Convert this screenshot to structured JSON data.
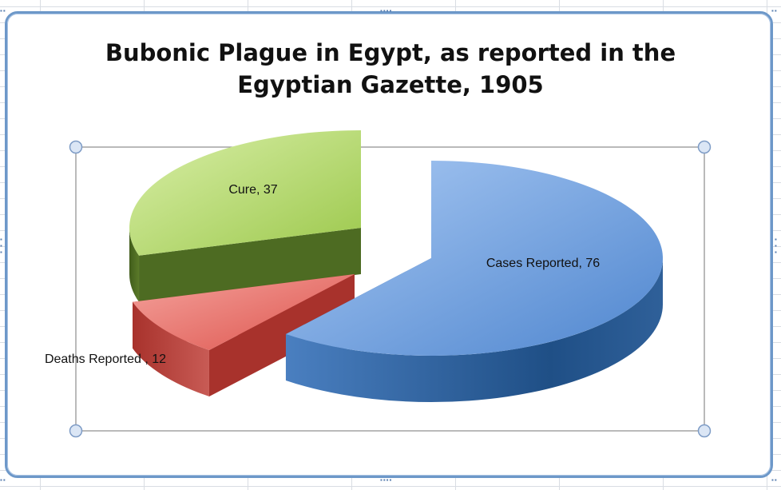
{
  "chart_data": {
    "type": "pie",
    "style": "3d-exploded",
    "title": "Bubonic Plague in Egypt, as reported in the Egyptian Gazette, 1905",
    "title_lines": [
      "Bubonic Plague in Egypt, as reported in the",
      "Egyptian Gazette, 1905"
    ],
    "categories": [
      "Cases Reported",
      "Deaths Reported ",
      "Cure"
    ],
    "values": [
      76,
      12,
      37
    ],
    "data_labels": [
      "Cases Reported, 76",
      "Deaths Reported , 12",
      "Cure, 37"
    ],
    "colors": [
      "#5b8fd0",
      "#e0605a",
      "#a8cf5a"
    ],
    "side_colors": [
      "#2e5f99",
      "#a8322c",
      "#4d6b22"
    ],
    "legend": "none",
    "grid": false
  }
}
